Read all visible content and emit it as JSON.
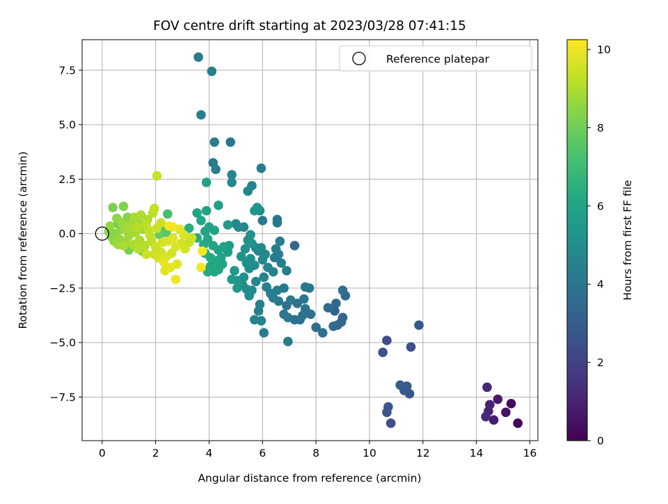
{
  "chart_data": {
    "type": "scatter",
    "title": "FOV centre drift starting at 2023/03/28 07:41:15",
    "xlabel": "Angular distance from reference (arcmin)",
    "ylabel": "Rotation from reference (arcmin)",
    "xlim": [
      -0.75,
      16.3
    ],
    "ylim": [
      -9.5,
      8.9
    ],
    "xticks": [
      0,
      2,
      4,
      6,
      8,
      10,
      12,
      14,
      16
    ],
    "xtick_labels": [
      "0",
      "2",
      "4",
      "6",
      "8",
      "10",
      "12",
      "14",
      "16"
    ],
    "yticks": [
      -7.5,
      -5.0,
      -2.5,
      0.0,
      2.5,
      5.0,
      7.5
    ],
    "ytick_labels": [
      "−7.5",
      "−5.0",
      "−2.5",
      "0.0",
      "2.5",
      "5.0",
      "7.5"
    ],
    "grid": true,
    "legend": {
      "position": "top-right",
      "entries": [
        {
          "label": "Reference platepar",
          "marker": "open-circle"
        }
      ]
    },
    "reference_point": {
      "x": 0,
      "y": 0
    },
    "colorbar": {
      "label": "Hours from first FF file",
      "range": [
        0,
        10.25
      ],
      "ticks": [
        0,
        2,
        4,
        6,
        8,
        10
      ],
      "tick_labels": [
        "0",
        "2",
        "4",
        "6",
        "8",
        "10"
      ],
      "colormap": "viridis"
    },
    "points": [
      {
        "x": 15.55,
        "y": -8.7,
        "c": 0.1
      },
      {
        "x": 15.3,
        "y": -7.8,
        "c": 0.3
      },
      {
        "x": 15.1,
        "y": -8.2,
        "c": 0.5
      },
      {
        "x": 14.8,
        "y": -7.6,
        "c": 0.7
      },
      {
        "x": 14.65,
        "y": -8.55,
        "c": 0.8
      },
      {
        "x": 14.5,
        "y": -7.85,
        "c": 0.9
      },
      {
        "x": 14.45,
        "y": -8.15,
        "c": 1.0
      },
      {
        "x": 14.35,
        "y": -8.4,
        "c": 1.3
      },
      {
        "x": 14.4,
        "y": -7.05,
        "c": 1.1
      },
      {
        "x": 10.8,
        "y": -8.7,
        "c": 2.5
      },
      {
        "x": 10.65,
        "y": -8.2,
        "c": 2.7
      },
      {
        "x": 10.7,
        "y": -7.95,
        "c": 2.8
      },
      {
        "x": 11.5,
        "y": -7.35,
        "c": 2.7
      },
      {
        "x": 11.3,
        "y": -7.2,
        "c": 2.8
      },
      {
        "x": 11.4,
        "y": -7.0,
        "c": 2.9
      },
      {
        "x": 11.15,
        "y": -6.95,
        "c": 3.0
      },
      {
        "x": 10.65,
        "y": -4.9,
        "c": 2.4
      },
      {
        "x": 10.5,
        "y": -5.45,
        "c": 2.6
      },
      {
        "x": 11.55,
        "y": -5.2,
        "c": 2.6
      },
      {
        "x": 11.85,
        "y": -4.2,
        "c": 2.9
      },
      {
        "x": 9.0,
        "y": -3.85,
        "c": 3.3
      },
      {
        "x": 8.95,
        "y": -4.05,
        "c": 3.4
      },
      {
        "x": 8.8,
        "y": -4.2,
        "c": 3.3
      },
      {
        "x": 8.7,
        "y": -3.55,
        "c": 3.2
      },
      {
        "x": 8.75,
        "y": -3.2,
        "c": 3.5
      },
      {
        "x": 8.65,
        "y": -4.25,
        "c": 3.6
      },
      {
        "x": 8.45,
        "y": -3.4,
        "c": 3.6
      },
      {
        "x": 9.1,
        "y": -2.85,
        "c": 3.5
      },
      {
        "x": 9.0,
        "y": -2.6,
        "c": 3.7
      },
      {
        "x": 8.25,
        "y": -4.55,
        "c": 3.8
      },
      {
        "x": 8.0,
        "y": -4.3,
        "c": 3.7
      },
      {
        "x": 7.8,
        "y": -3.7,
        "c": 3.8
      },
      {
        "x": 7.6,
        "y": -3.45,
        "c": 3.9
      },
      {
        "x": 7.5,
        "y": -3.75,
        "c": 3.9
      },
      {
        "x": 7.4,
        "y": -3.95,
        "c": 3.8
      },
      {
        "x": 7.3,
        "y": -3.2,
        "c": 3.9
      },
      {
        "x": 7.2,
        "y": -3.95,
        "c": 3.8
      },
      {
        "x": 7.55,
        "y": -3.0,
        "c": 4.0
      },
      {
        "x": 7.6,
        "y": -2.45,
        "c": 4.0
      },
      {
        "x": 7.75,
        "y": -2.5,
        "c": 4.1
      },
      {
        "x": 7.05,
        "y": -3.05,
        "c": 4.0
      },
      {
        "x": 6.9,
        "y": -3.3,
        "c": 3.9
      },
      {
        "x": 6.95,
        "y": -3.85,
        "c": 4.0
      },
      {
        "x": 6.8,
        "y": -3.7,
        "c": 4.1
      },
      {
        "x": 6.95,
        "y": -4.95,
        "c": 4.2
      },
      {
        "x": 7.2,
        "y": -0.55,
        "c": 3.4
      },
      {
        "x": 6.05,
        "y": -4.55,
        "c": 4.4
      },
      {
        "x": 5.95,
        "y": -4.0,
        "c": 4.5
      },
      {
        "x": 5.7,
        "y": -3.95,
        "c": 4.6
      },
      {
        "x": 5.85,
        "y": -3.55,
        "c": 4.4
      },
      {
        "x": 5.9,
        "y": -3.25,
        "c": 4.5
      },
      {
        "x": 6.6,
        "y": -3.1,
        "c": 4.2
      },
      {
        "x": 6.4,
        "y": -2.95,
        "c": 4.3
      },
      {
        "x": 6.8,
        "y": -2.5,
        "c": 4.2
      },
      {
        "x": 6.55,
        "y": -2.6,
        "c": 4.3
      },
      {
        "x": 6.3,
        "y": -2.75,
        "c": 4.4
      },
      {
        "x": 6.15,
        "y": -2.45,
        "c": 4.4
      },
      {
        "x": 6.9,
        "y": -1.7,
        "c": 4.3
      },
      {
        "x": 6.7,
        "y": -1.35,
        "c": 4.3
      },
      {
        "x": 6.45,
        "y": -1.1,
        "c": 4.2
      },
      {
        "x": 6.6,
        "y": -0.95,
        "c": 4.3
      },
      {
        "x": 6.5,
        "y": -0.7,
        "c": 4.4
      },
      {
        "x": 6.65,
        "y": -0.35,
        "c": 4.3
      },
      {
        "x": 6.55,
        "y": 0.65,
        "c": 4.0
      },
      {
        "x": 6.55,
        "y": 0.5,
        "c": 4.1
      },
      {
        "x": 6.0,
        "y": 0.6,
        "c": 4.2
      },
      {
        "x": 5.9,
        "y": 1.05,
        "c": 5.0
      },
      {
        "x": 5.8,
        "y": 1.2,
        "c": 5.3
      },
      {
        "x": 5.7,
        "y": 1.05,
        "c": 5.4
      },
      {
        "x": 6.4,
        "y": -1.75,
        "c": 4.5
      },
      {
        "x": 6.2,
        "y": -1.55,
        "c": 4.6
      },
      {
        "x": 6.0,
        "y": -1.2,
        "c": 4.7
      },
      {
        "x": 6.1,
        "y": -0.95,
        "c": 4.6
      },
      {
        "x": 5.85,
        "y": -0.8,
        "c": 4.7
      },
      {
        "x": 5.95,
        "y": -0.65,
        "c": 4.8
      },
      {
        "x": 6.05,
        "y": -2.0,
        "c": 4.5
      },
      {
        "x": 5.75,
        "y": -2.2,
        "c": 4.6
      },
      {
        "x": 5.6,
        "y": -2.6,
        "c": 4.8
      },
      {
        "x": 5.5,
        "y": -2.85,
        "c": 4.9
      },
      {
        "x": 5.4,
        "y": -2.55,
        "c": 5.0
      },
      {
        "x": 5.25,
        "y": -2.35,
        "c": 5.0
      },
      {
        "x": 5.3,
        "y": -2.0,
        "c": 5.1
      },
      {
        "x": 5.5,
        "y": -1.6,
        "c": 5.0
      },
      {
        "x": 5.7,
        "y": -1.45,
        "c": 4.9
      },
      {
        "x": 5.55,
        "y": -1.15,
        "c": 5.0
      },
      {
        "x": 5.4,
        "y": -1.35,
        "c": 5.1
      },
      {
        "x": 5.2,
        "y": -1.05,
        "c": 5.2
      },
      {
        "x": 5.35,
        "y": -0.7,
        "c": 5.1
      },
      {
        "x": 5.45,
        "y": -0.3,
        "c": 5.0
      },
      {
        "x": 5.55,
        "y": -0.05,
        "c": 5.2
      },
      {
        "x": 5.6,
        "y": -0.45,
        "c": 5.2
      },
      {
        "x": 5.3,
        "y": 0.3,
        "c": 4.6
      },
      {
        "x": 5.0,
        "y": 0.45,
        "c": 4.7
      },
      {
        "x": 5.1,
        "y": 0.3,
        "c": 4.8
      },
      {
        "x": 5.05,
        "y": -2.15,
        "c": 5.3
      },
      {
        "x": 5.05,
        "y": -2.5,
        "c": 5.4
      },
      {
        "x": 4.85,
        "y": -2.1,
        "c": 5.5
      },
      {
        "x": 4.95,
        "y": -1.7,
        "c": 5.4
      },
      {
        "x": 4.85,
        "y": 2.7,
        "c": 4.6
      },
      {
        "x": 4.85,
        "y": 2.35,
        "c": 4.7
      },
      {
        "x": 4.8,
        "y": 4.2,
        "c": 4.0
      },
      {
        "x": 4.2,
        "y": 4.2,
        "c": 4.3
      },
      {
        "x": 4.15,
        "y": 3.25,
        "c": 4.2
      },
      {
        "x": 4.25,
        "y": 2.95,
        "c": 4.3
      },
      {
        "x": 5.95,
        "y": 3.0,
        "c": 4.2
      },
      {
        "x": 5.6,
        "y": 2.2,
        "c": 4.5
      },
      {
        "x": 5.45,
        "y": 1.95,
        "c": 4.6
      },
      {
        "x": 5.75,
        "y": -0.65,
        "c": 4.5
      },
      {
        "x": 3.6,
        "y": 8.1,
        "c": 4.2
      },
      {
        "x": 4.1,
        "y": 7.45,
        "c": 4.3
      },
      {
        "x": 3.7,
        "y": 5.45,
        "c": 4.4
      },
      {
        "x": 3.9,
        "y": 2.35,
        "c": 5.8
      },
      {
        "x": 4.35,
        "y": 1.3,
        "c": 5.7
      },
      {
        "x": 3.9,
        "y": 1.05,
        "c": 5.9
      },
      {
        "x": 3.55,
        "y": 0.95,
        "c": 6.0
      },
      {
        "x": 3.7,
        "y": 0.6,
        "c": 6.1
      },
      {
        "x": 4.7,
        "y": 0.4,
        "c": 5.5
      },
      {
        "x": 4.0,
        "y": 0.3,
        "c": 5.8
      },
      {
        "x": 3.85,
        "y": 0.1,
        "c": 6.0
      },
      {
        "x": 4.2,
        "y": 0.15,
        "c": 5.9
      },
      {
        "x": 3.95,
        "y": -0.25,
        "c": 6.1
      },
      {
        "x": 4.15,
        "y": -0.55,
        "c": 6.0
      },
      {
        "x": 4.35,
        "y": -0.75,
        "c": 5.9
      },
      {
        "x": 4.55,
        "y": -0.6,
        "c": 5.8
      },
      {
        "x": 4.7,
        "y": -0.85,
        "c": 5.7
      },
      {
        "x": 4.75,
        "y": -0.55,
        "c": 5.6
      },
      {
        "x": 4.45,
        "y": -1.1,
        "c": 6.0
      },
      {
        "x": 4.25,
        "y": -1.25,
        "c": 6.1
      },
      {
        "x": 4.05,
        "y": -1.1,
        "c": 6.2
      },
      {
        "x": 3.85,
        "y": -0.9,
        "c": 6.3
      },
      {
        "x": 3.8,
        "y": -0.5,
        "c": 6.2
      },
      {
        "x": 4.05,
        "y": -1.5,
        "c": 6.1
      },
      {
        "x": 4.35,
        "y": -1.65,
        "c": 6.0
      },
      {
        "x": 4.2,
        "y": -1.75,
        "c": 6.1
      },
      {
        "x": 3.95,
        "y": -1.75,
        "c": 6.2
      },
      {
        "x": 4.5,
        "y": -1.4,
        "c": 5.9
      },
      {
        "x": 3.55,
        "y": -0.2,
        "c": 6.3
      },
      {
        "x": 3.25,
        "y": 0.25,
        "c": 6.4
      },
      {
        "x": 2.45,
        "y": 0.9,
        "c": 7.2
      },
      {
        "x": 2.3,
        "y": 0.3,
        "c": 7.4
      },
      {
        "x": 2.4,
        "y": 0.05,
        "c": 7.6
      },
      {
        "x": 2.15,
        "y": -0.05,
        "c": 7.8
      },
      {
        "x": 1.5,
        "y": -0.8,
        "c": 8.0
      },
      {
        "x": 1.0,
        "y": -0.75,
        "c": 8.1
      },
      {
        "x": 0.6,
        "y": 0.45,
        "c": 7.9
      },
      {
        "x": 0.4,
        "y": 1.2,
        "c": 8.2
      },
      {
        "x": 0.8,
        "y": 1.25,
        "c": 8.3
      },
      {
        "x": 0.5,
        "y": 0.0,
        "c": 8.4
      },
      {
        "x": 0.7,
        "y": 0.2,
        "c": 8.5
      },
      {
        "x": 0.95,
        "y": 0.75,
        "c": 8.3
      },
      {
        "x": 1.1,
        "y": 0.5,
        "c": 8.6
      },
      {
        "x": 1.35,
        "y": 0.55,
        "c": 8.7
      },
      {
        "x": 1.55,
        "y": 0.2,
        "c": 8.8
      },
      {
        "x": 1.25,
        "y": 0.05,
        "c": 8.9
      },
      {
        "x": 1.0,
        "y": -0.1,
        "c": 8.8
      },
      {
        "x": 0.85,
        "y": -0.4,
        "c": 8.6
      },
      {
        "x": 0.65,
        "y": -0.25,
        "c": 8.7
      },
      {
        "x": 1.05,
        "y": 0.3,
        "c": 8.9
      },
      {
        "x": 1.4,
        "y": -0.3,
        "c": 9.0
      },
      {
        "x": 1.6,
        "y": -0.55,
        "c": 9.1
      },
      {
        "x": 1.85,
        "y": -0.35,
        "c": 9.2
      },
      {
        "x": 1.7,
        "y": 0.65,
        "c": 9.0
      },
      {
        "x": 1.9,
        "y": 0.95,
        "c": 9.2
      },
      {
        "x": 1.95,
        "y": 1.15,
        "c": 9.3
      },
      {
        "x": 2.05,
        "y": 2.65,
        "c": 9.4
      },
      {
        "x": 1.75,
        "y": 0.15,
        "c": 9.3
      },
      {
        "x": 2.0,
        "y": -0.6,
        "c": 9.4
      },
      {
        "x": 2.2,
        "y": -0.85,
        "c": 9.5
      },
      {
        "x": 2.1,
        "y": -1.1,
        "c": 9.6
      },
      {
        "x": 2.4,
        "y": -1.05,
        "c": 9.7
      },
      {
        "x": 2.35,
        "y": -1.7,
        "c": 9.8
      },
      {
        "x": 2.55,
        "y": -1.55,
        "c": 9.9
      },
      {
        "x": 2.75,
        "y": -2.1,
        "c": 10.0
      },
      {
        "x": 2.8,
        "y": -1.4,
        "c": 9.8
      },
      {
        "x": 2.6,
        "y": -0.9,
        "c": 9.6
      },
      {
        "x": 2.75,
        "y": -0.6,
        "c": 9.7
      },
      {
        "x": 2.95,
        "y": -0.45,
        "c": 9.5
      },
      {
        "x": 3.1,
        "y": -0.7,
        "c": 9.6
      },
      {
        "x": 3.25,
        "y": -0.4,
        "c": 9.4
      },
      {
        "x": 3.35,
        "y": -0.2,
        "c": 9.5
      },
      {
        "x": 3.05,
        "y": -0.05,
        "c": 9.7
      },
      {
        "x": 2.9,
        "y": 0.2,
        "c": 9.8
      },
      {
        "x": 2.65,
        "y": 0.3,
        "c": 10.0
      },
      {
        "x": 2.5,
        "y": 0.35,
        "c": 10.1
      },
      {
        "x": 3.75,
        "y": -0.8,
        "c": 10.2
      },
      {
        "x": 3.7,
        "y": -1.55,
        "c": 10.1
      },
      {
        "x": 0.25,
        "y": 0.1,
        "c": 8.5
      },
      {
        "x": 0.35,
        "y": -0.15,
        "c": 8.4
      },
      {
        "x": 0.3,
        "y": 0.35,
        "c": 8.6
      },
      {
        "x": 0.55,
        "y": 0.7,
        "c": 8.5
      },
      {
        "x": 0.75,
        "y": 0.5,
        "c": 8.7
      },
      {
        "x": 0.9,
        "y": 0.15,
        "c": 8.8
      },
      {
        "x": 1.2,
        "y": 0.75,
        "c": 8.9
      },
      {
        "x": 1.45,
        "y": 0.85,
        "c": 9.0
      },
      {
        "x": 1.3,
        "y": 0.3,
        "c": 9.1
      },
      {
        "x": 1.65,
        "y": 0.4,
        "c": 9.2
      },
      {
        "x": 1.8,
        "y": -0.1,
        "c": 9.3
      },
      {
        "x": 2.05,
        "y": 0.25,
        "c": 9.4
      },
      {
        "x": 2.2,
        "y": 0.5,
        "c": 9.5
      },
      {
        "x": 2.25,
        "y": -0.4,
        "c": 9.6
      },
      {
        "x": 2.45,
        "y": -0.35,
        "c": 9.7
      },
      {
        "x": 2.65,
        "y": -0.2,
        "c": 9.8
      },
      {
        "x": 1.95,
        "y": -0.95,
        "c": 9.5
      },
      {
        "x": 1.65,
        "y": -0.95,
        "c": 9.4
      },
      {
        "x": 2.3,
        "y": -1.3,
        "c": 9.9
      },
      {
        "x": 0.45,
        "y": -0.35,
        "c": 8.6
      },
      {
        "x": 0.6,
        "y": -0.5,
        "c": 8.7
      },
      {
        "x": 0.8,
        "y": -0.55,
        "c": 8.9
      },
      {
        "x": 1.15,
        "y": -0.5,
        "c": 9.0
      },
      {
        "x": 1.35,
        "y": -0.7,
        "c": 9.1
      }
    ]
  }
}
